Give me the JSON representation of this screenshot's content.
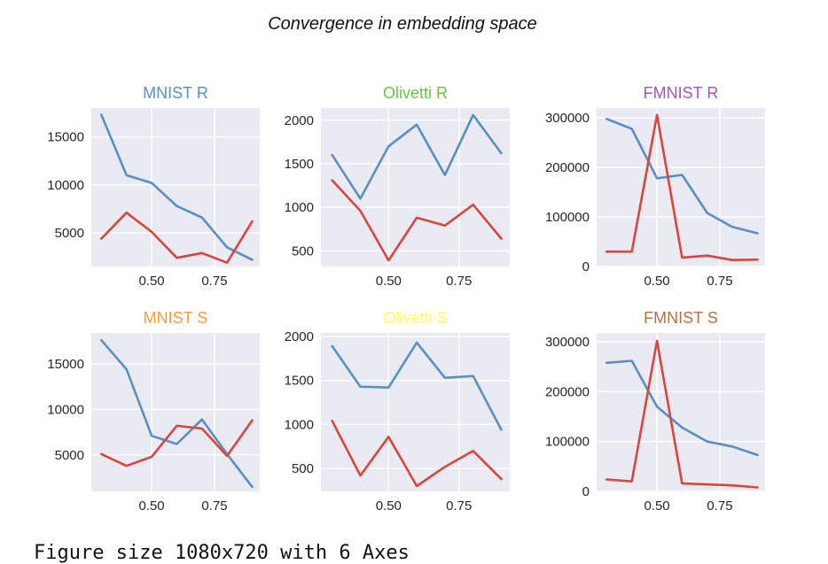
{
  "figure": {
    "suptitle": "Convergence in embedding space",
    "caption": "Figure size 1080x720 with 6 Axes"
  },
  "colors": {
    "series_a": "#5a8fc4",
    "series_b": "#d9453f",
    "background": "#eaeaf2",
    "grid": "#ffffff"
  },
  "chart_data": [
    {
      "type": "line",
      "title": "MNIST R",
      "title_color": "#5a8fc4",
      "x": [
        0.3,
        0.4,
        0.5,
        0.6,
        0.7,
        0.8,
        0.9
      ],
      "xlim": [
        0.26,
        0.93
      ],
      "xticks": [
        0.5,
        0.75
      ],
      "xticklabels": [
        "0.50",
        "0.75"
      ],
      "ylim": [
        1500,
        18000
      ],
      "yticks": [
        5000,
        10000,
        15000
      ],
      "yticklabels": [
        "5000",
        "10000",
        "15000"
      ],
      "grid": true,
      "series": [
        {
          "color": "#5a8fc4",
          "values": [
            17300,
            11000,
            10200,
            7800,
            6600,
            3500,
            2200
          ]
        },
        {
          "color": "#d9453f",
          "values": [
            4400,
            7100,
            5100,
            2400,
            2900,
            1900,
            6200
          ]
        }
      ]
    },
    {
      "type": "line",
      "title": "Olivetti R",
      "title_color": "#6cc24a",
      "x": [
        0.3,
        0.4,
        0.5,
        0.6,
        0.7,
        0.8,
        0.9
      ],
      "xlim": [
        0.26,
        0.93
      ],
      "xticks": [
        0.5,
        0.75
      ],
      "xticklabels": [
        "0.50",
        "0.75"
      ],
      "ylim": [
        320,
        2140
      ],
      "yticks": [
        500,
        1000,
        1500,
        2000
      ],
      "yticklabels": [
        "500",
        "1000",
        "1500",
        "2000"
      ],
      "grid": true,
      "series": [
        {
          "color": "#5a8fc4",
          "values": [
            1600,
            1100,
            1700,
            1950,
            1370,
            2060,
            1620
          ]
        },
        {
          "color": "#d9453f",
          "values": [
            1310,
            960,
            390,
            880,
            790,
            1030,
            640
          ]
        }
      ]
    },
    {
      "type": "line",
      "title": "FMNIST R",
      "title_color": "#9b59b6",
      "x": [
        0.3,
        0.4,
        0.5,
        0.6,
        0.7,
        0.8,
        0.9
      ],
      "xlim": [
        0.26,
        0.93
      ],
      "xticks": [
        0.5,
        0.75
      ],
      "xticklabels": [
        "0.50",
        "0.75"
      ],
      "ylim": [
        0,
        320000
      ],
      "yticks": [
        0,
        100000,
        200000,
        300000
      ],
      "yticklabels": [
        "0",
        "100000",
        "200000",
        "300000"
      ],
      "grid": true,
      "series": [
        {
          "color": "#5a8fc4",
          "values": [
            298000,
            278000,
            178000,
            185000,
            108000,
            80000,
            67000
          ]
        },
        {
          "color": "#d9453f",
          "values": [
            30000,
            30000,
            306000,
            18000,
            22000,
            13000,
            14000
          ]
        }
      ]
    },
    {
      "type": "line",
      "title": "MNIST S",
      "title_color": "#f39c45",
      "x": [
        0.3,
        0.4,
        0.5,
        0.6,
        0.7,
        0.8,
        0.9
      ],
      "xlim": [
        0.26,
        0.93
      ],
      "xticks": [
        0.5,
        0.75
      ],
      "xticklabels": [
        "0.50",
        "0.75"
      ],
      "ylim": [
        1000,
        18400
      ],
      "yticks": [
        5000,
        10000,
        15000
      ],
      "yticklabels": [
        "5000",
        "10000",
        "15000"
      ],
      "grid": true,
      "series": [
        {
          "color": "#5a8fc4",
          "values": [
            17600,
            14400,
            7100,
            6200,
            8900,
            5100,
            1500
          ]
        },
        {
          "color": "#d9453f",
          "values": [
            5100,
            3800,
            4800,
            8200,
            7900,
            4900,
            8800
          ]
        }
      ]
    },
    {
      "type": "line",
      "title": "Olivetti S",
      "title_color": "#ffff5e",
      "x": [
        0.3,
        0.4,
        0.5,
        0.6,
        0.7,
        0.8,
        0.9
      ],
      "xlim": [
        0.26,
        0.93
      ],
      "xticks": [
        0.5,
        0.75
      ],
      "xticklabels": [
        "0.50",
        "0.75"
      ],
      "ylim": [
        240,
        2040
      ],
      "yticks": [
        500,
        1000,
        1500,
        2000
      ],
      "yticklabels": [
        "500",
        "1000",
        "1500",
        "2000"
      ],
      "grid": true,
      "series": [
        {
          "color": "#5a8fc4",
          "values": [
            1890,
            1430,
            1420,
            1930,
            1530,
            1550,
            940
          ]
        },
        {
          "color": "#d9453f",
          "values": [
            1040,
            420,
            860,
            300,
            520,
            700,
            380
          ]
        }
      ]
    },
    {
      "type": "line",
      "title": "FMNIST S",
      "title_color": "#b07245",
      "x": [
        0.3,
        0.4,
        0.5,
        0.6,
        0.7,
        0.8,
        0.9
      ],
      "xlim": [
        0.26,
        0.93
      ],
      "xticks": [
        0.5,
        0.75
      ],
      "xticklabels": [
        "0.50",
        "0.75"
      ],
      "ylim": [
        0,
        318000
      ],
      "yticks": [
        0,
        100000,
        200000,
        300000
      ],
      "yticklabels": [
        "0",
        "100000",
        "200000",
        "300000"
      ],
      "grid": true,
      "series": [
        {
          "color": "#5a8fc4",
          "values": [
            258000,
            262000,
            170000,
            128000,
            100000,
            90000,
            73000
          ]
        },
        {
          "color": "#d9453f",
          "values": [
            24000,
            20000,
            302000,
            16000,
            14000,
            12000,
            8000
          ]
        }
      ]
    }
  ]
}
